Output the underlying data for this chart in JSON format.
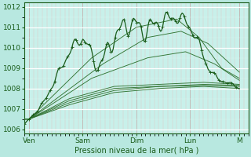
{
  "title": "",
  "xlabel": "Pression niveau de la mer( hPa )",
  "bg_color": "#b8e8e0",
  "plot_bg_color": "#c8f0ea",
  "ylim": [
    1005.8,
    1012.2
  ],
  "xlim": [
    0,
    100
  ],
  "day_labels": [
    "Ven",
    "Sam",
    "Dim",
    "Lun",
    "M"
  ],
  "day_positions": [
    2,
    26,
    50,
    74,
    96
  ],
  "yticks": [
    1006,
    1007,
    1008,
    1009,
    1010,
    1011,
    1012
  ],
  "line_color_dark": "#1a5c1a",
  "line_color_mid": "#2a6e2a"
}
